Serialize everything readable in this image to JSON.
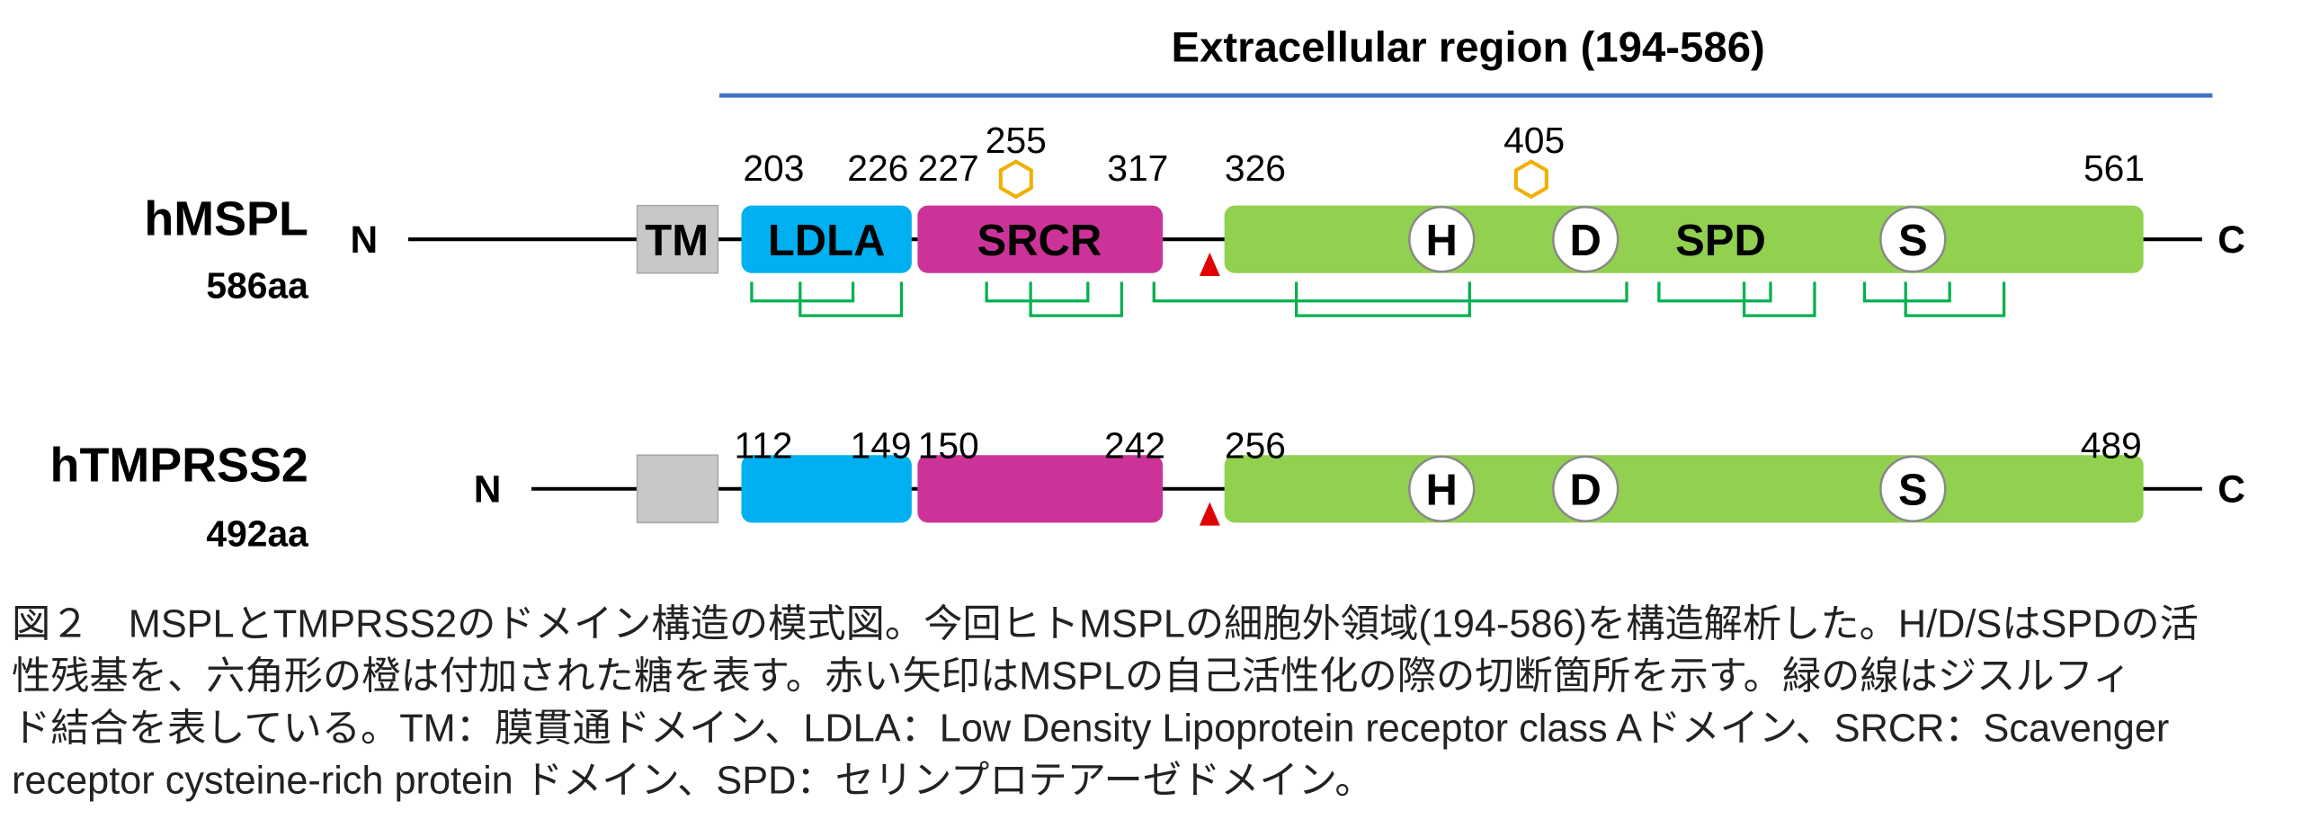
{
  "header": {
    "title": "Extracellular region (194-586)"
  },
  "proteins": [
    {
      "name": "hMSPL",
      "length": "586aa",
      "n_term": "N",
      "c_term": "C",
      "domains": {
        "tm": "TM",
        "ldla": "LDLA",
        "srcr": "SRCR",
        "spd": "SPD"
      },
      "sites": [
        "H",
        "D",
        "S"
      ],
      "positions": [
        "203",
        "226",
        "227",
        "255",
        "317",
        "326",
        "405",
        "561"
      ]
    },
    {
      "name": "hTMPRSS2",
      "length": "492aa",
      "n_term": "N",
      "c_term": "C",
      "sites": [
        "H",
        "D",
        "S"
      ],
      "positions": [
        "112",
        "149",
        "150",
        "242",
        "256",
        "489"
      ]
    }
  ],
  "caption": [
    "図２　MSPLとTMPRSS2のドメイン構造の模式図。今回ヒトMSPLの細胞外領域(194-586)を構造解析した。H/D/SはSPDの活",
    "性残基を、六角形の橙は付加された糖を表す。赤い矢印はMSPLの自己活性化の際の切断箇所を示す。緑の線はジスルフィ",
    "ド結合を表している。TM：膜貫通ドメイン、LDLA：Low Density Lipoprotein receptor class Aドメイン、SRCR：Scavenger",
    "receptor cysteine-rich protein ドメイン、SPD：セリンプロテアーゼドメイン。"
  ]
}
